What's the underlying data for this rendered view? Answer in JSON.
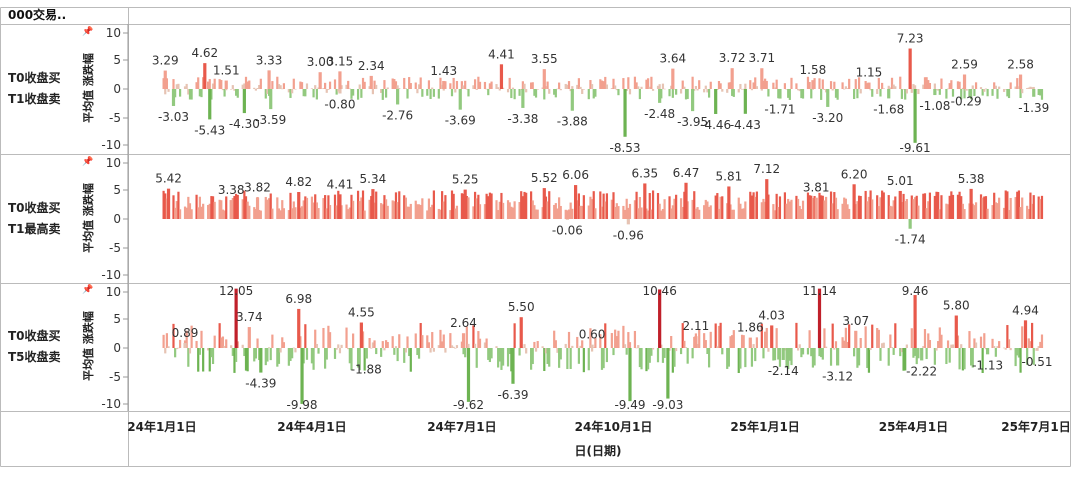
{
  "header": {
    "title": "000交易.."
  },
  "x_axis": {
    "title": "日(日期)",
    "ticks": [
      "24年1月1日",
      "24年4月1日",
      "24年7月1日",
      "24年10月1日",
      "25年1月1日",
      "25年4月1日",
      "25年7月1日"
    ]
  },
  "y_axis": {
    "title": "平均值 涨跌幅",
    "ticks": [
      "10",
      "5",
      "0",
      "-5",
      "-10"
    ],
    "range": [
      -10,
      10
    ]
  },
  "colors": {
    "strong_positive": "#e8594b",
    "positive": "#f2a08f",
    "faint": "#e6c3b3",
    "negative": "#92c97f",
    "strong_negative": "#6db352",
    "extreme": "#c0202a"
  },
  "chart_data": [
    {
      "type": "bar",
      "row_label": [
        "T0收盘买",
        "T1收盘卖"
      ],
      "ylim": [
        -10,
        10
      ],
      "labels": [
        {
          "date": "2024-01-03",
          "value": 3.29
        },
        {
          "date": "2024-01-08",
          "value": -3.03
        },
        {
          "date": "2024-01-27",
          "value": 4.62
        },
        {
          "date": "2024-01-30",
          "value": -5.43
        },
        {
          "date": "2024-02-09",
          "value": 1.51
        },
        {
          "date": "2024-02-20",
          "value": -4.3
        },
        {
          "date": "2024-03-06",
          "value": 3.33
        },
        {
          "date": "2024-03-07",
          "value": -3.59
        },
        {
          "date": "2024-04-06",
          "value": 3.0
        },
        {
          "date": "2024-04-18",
          "value": 3.15
        },
        {
          "date": "2024-04-18",
          "value": -0.8
        },
        {
          "date": "2024-05-07",
          "value": 2.34
        },
        {
          "date": "2024-05-23",
          "value": -2.76
        },
        {
          "date": "2024-06-20",
          "value": 1.43
        },
        {
          "date": "2024-06-30",
          "value": -3.69
        },
        {
          "date": "2024-07-25",
          "value": 4.41
        },
        {
          "date": "2024-08-07",
          "value": -3.38
        },
        {
          "date": "2024-08-20",
          "value": 3.55
        },
        {
          "date": "2024-09-06",
          "value": -3.88
        },
        {
          "date": "2024-10-08",
          "value": -8.53
        },
        {
          "date": "2024-10-29",
          "value": -2.48
        },
        {
          "date": "2024-11-06",
          "value": 3.64
        },
        {
          "date": "2024-11-18",
          "value": -3.95
        },
        {
          "date": "2024-12-02",
          "value": -4.46
        },
        {
          "date": "2024-12-12",
          "value": 3.72
        },
        {
          "date": "2024-12-20",
          "value": -4.43
        },
        {
          "date": "2024-12-30",
          "value": 3.71
        },
        {
          "date": "2025-01-10",
          "value": -1.71
        },
        {
          "date": "2025-01-30",
          "value": 1.58
        },
        {
          "date": "2025-02-08",
          "value": -3.2
        },
        {
          "date": "2025-03-05",
          "value": 1.15
        },
        {
          "date": "2025-03-17",
          "value": -1.68
        },
        {
          "date": "2025-03-30",
          "value": 7.23
        },
        {
          "date": "2025-04-02",
          "value": -9.61
        },
        {
          "date": "2025-04-14",
          "value": -1.08
        },
        {
          "date": "2025-05-02",
          "value": 2.59
        },
        {
          "date": "2025-05-03",
          "value": -0.29
        },
        {
          "date": "2025-06-05",
          "value": 2.58
        },
        {
          "date": "2025-06-13",
          "value": -1.39
        }
      ]
    },
    {
      "type": "bar",
      "row_label": [
        "T0收盘买",
        "T1最高卖"
      ],
      "ylim": [
        -10,
        10
      ],
      "labels": [
        {
          "date": "2024-01-05",
          "value": 5.42
        },
        {
          "date": "2024-02-12",
          "value": 3.38
        },
        {
          "date": "2024-02-28",
          "value": 3.82
        },
        {
          "date": "2024-03-24",
          "value": 4.82
        },
        {
          "date": "2024-04-18",
          "value": 4.41
        },
        {
          "date": "2024-05-08",
          "value": 5.34
        },
        {
          "date": "2024-07-03",
          "value": 5.25
        },
        {
          "date": "2024-08-20",
          "value": 5.52
        },
        {
          "date": "2024-09-03",
          "value": -0.06
        },
        {
          "date": "2024-09-08",
          "value": 6.06
        },
        {
          "date": "2024-10-10",
          "value": -0.96
        },
        {
          "date": "2024-10-20",
          "value": 6.35
        },
        {
          "date": "2024-11-14",
          "value": 6.47
        },
        {
          "date": "2024-12-10",
          "value": 5.81
        },
        {
          "date": "2025-01-02",
          "value": 7.12
        },
        {
          "date": "2025-02-01",
          "value": 3.81
        },
        {
          "date": "2025-02-24",
          "value": 6.2
        },
        {
          "date": "2025-03-24",
          "value": 5.01
        },
        {
          "date": "2025-03-30",
          "value": -1.74
        },
        {
          "date": "2025-05-06",
          "value": 5.38
        }
      ]
    },
    {
      "type": "bar",
      "row_label": [
        "T0收盘买",
        "T5收盘卖"
      ],
      "ylim": [
        -10,
        10
      ],
      "labels": [
        {
          "date": "2024-01-15",
          "value": 0.89
        },
        {
          "date": "2024-02-15",
          "value": 12.05
        },
        {
          "date": "2024-02-23",
          "value": 3.74
        },
        {
          "date": "2024-03-01",
          "value": -4.39
        },
        {
          "date": "2024-03-24",
          "value": 6.98
        },
        {
          "date": "2024-03-26",
          "value": -9.98
        },
        {
          "date": "2024-05-01",
          "value": 4.55
        },
        {
          "date": "2024-05-04",
          "value": -1.88
        },
        {
          "date": "2024-07-02",
          "value": 2.64
        },
        {
          "date": "2024-07-05",
          "value": -9.62
        },
        {
          "date": "2024-08-01",
          "value": -6.39
        },
        {
          "date": "2024-08-06",
          "value": 5.5
        },
        {
          "date": "2024-09-18",
          "value": 0.6
        },
        {
          "date": "2024-10-11",
          "value": -9.49
        },
        {
          "date": "2024-10-29",
          "value": 10.46
        },
        {
          "date": "2024-11-03",
          "value": -9.03
        },
        {
          "date": "2024-11-20",
          "value": 2.11
        },
        {
          "date": "2024-12-23",
          "value": 1.86
        },
        {
          "date": "2025-01-05",
          "value": 4.03
        },
        {
          "date": "2025-01-12",
          "value": -2.14
        },
        {
          "date": "2025-02-03",
          "value": 11.14
        },
        {
          "date": "2025-02-14",
          "value": -3.12
        },
        {
          "date": "2025-02-25",
          "value": 3.07
        },
        {
          "date": "2025-04-02",
          "value": 9.46
        },
        {
          "date": "2025-04-06",
          "value": -2.22
        },
        {
          "date": "2025-04-27",
          "value": 5.8
        },
        {
          "date": "2025-05-16",
          "value": -1.13
        },
        {
          "date": "2025-06-08",
          "value": 4.94
        },
        {
          "date": "2025-06-15",
          "value": -0.51
        }
      ]
    }
  ]
}
